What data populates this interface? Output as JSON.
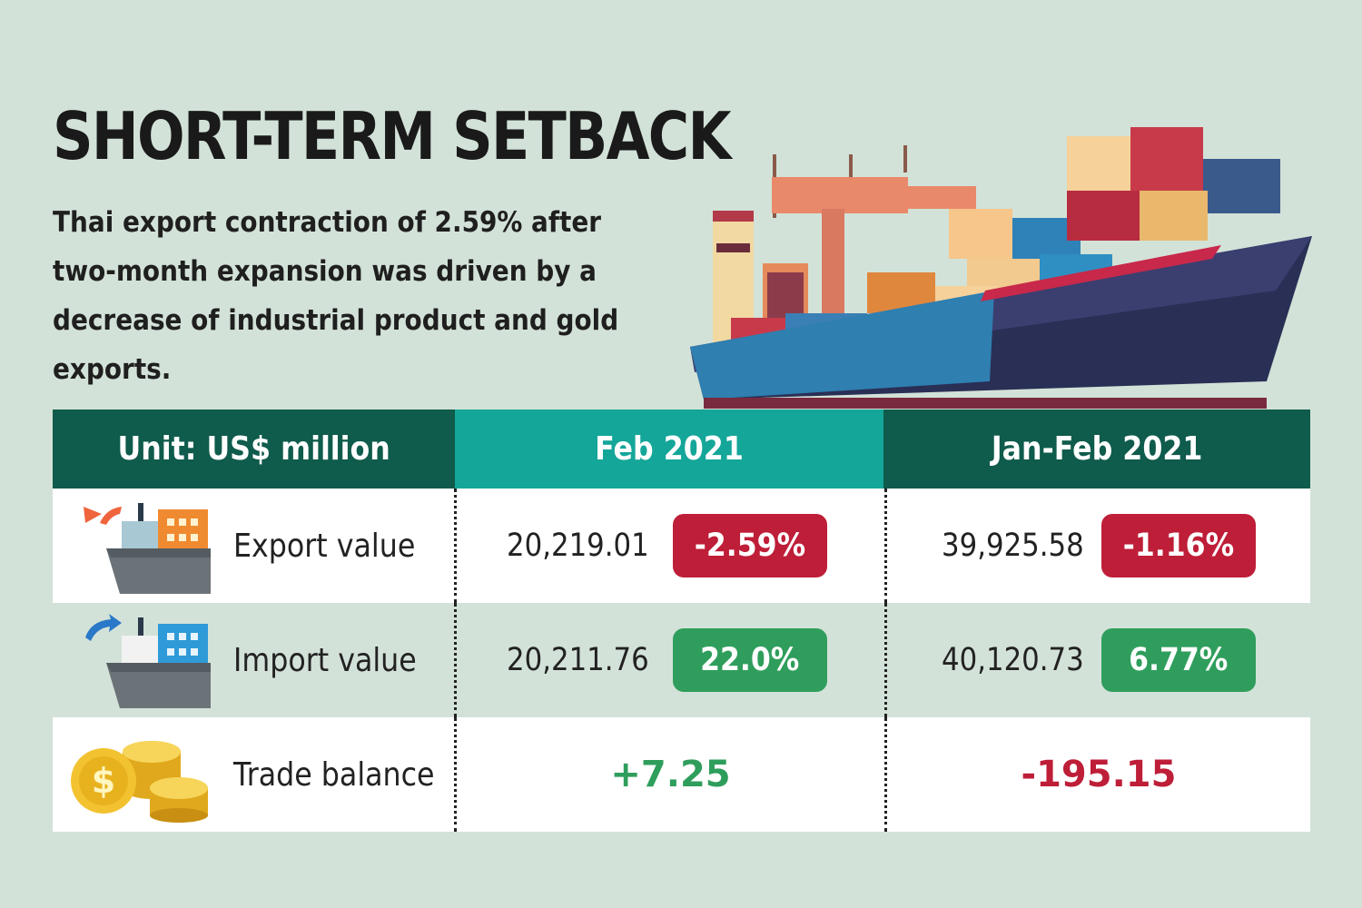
{
  "header": {
    "title": "SHORT-TERM SETBACK",
    "subtitle": "Thai export contraction of 2.59% after two-month expansion was driven by a decrease of industrial product and gold exports."
  },
  "table": {
    "columns": [
      "Unit: US$ million",
      "Feb 2021",
      "Jan-Feb 2021"
    ],
    "rows": [
      {
        "label": "Export value",
        "icon": "export-ship-icon",
        "feb_value": "20,219.01",
        "feb_change": "-2.59%",
        "janfeb_value": "39,925.58",
        "janfeb_change": "-1.16%"
      },
      {
        "label": "Import value",
        "icon": "import-ship-icon",
        "feb_value": "20,211.76",
        "feb_change": "22.0%",
        "janfeb_value": "40,120.73",
        "janfeb_change": "6.77%"
      },
      {
        "label": "Trade balance",
        "icon": "gold-coins-icon",
        "feb_value": "+7.25",
        "janfeb_value": "-195.15"
      }
    ]
  },
  "colors": {
    "background": "#d3e2d8",
    "header_dark": "#0f5b4c",
    "header_teal": "#14a699",
    "negative": "#be1e38",
    "positive": "#2f9e5c"
  }
}
